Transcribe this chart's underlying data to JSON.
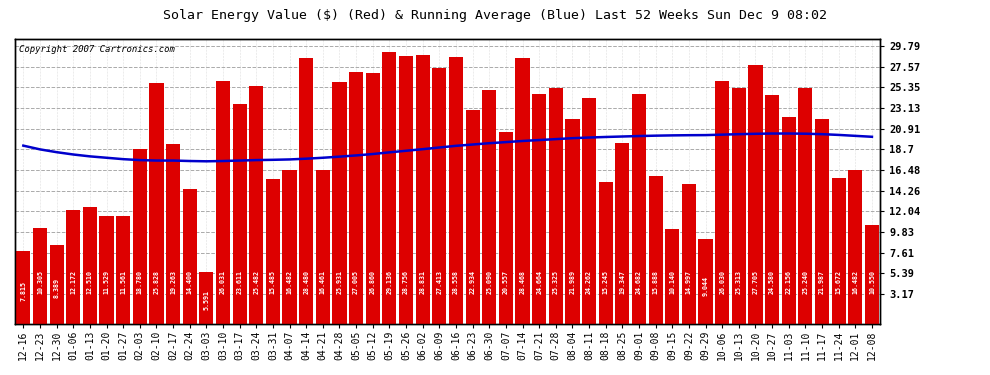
{
  "title": "Solar Energy Value ($) (Red) & Running Average (Blue) Last 52 Weeks Sun Dec 9 08:02",
  "copyright": "Copyright 2007 Cartronics.com",
  "bar_color": "#dd0000",
  "line_color": "#0000cc",
  "background_color": "#ffffff",
  "plot_bg_color": "#ffffff",
  "yticks_right": [
    3.17,
    5.39,
    7.61,
    9.83,
    12.04,
    14.26,
    16.48,
    18.7,
    20.91,
    23.13,
    25.35,
    27.57,
    29.79
  ],
  "categories": [
    "12-16",
    "12-23",
    "12-30",
    "01-06",
    "01-13",
    "01-20",
    "01-27",
    "02-03",
    "02-10",
    "02-17",
    "02-24",
    "03-03",
    "03-10",
    "03-17",
    "03-24",
    "03-31",
    "04-07",
    "04-14",
    "04-21",
    "04-28",
    "05-05",
    "05-12",
    "05-19",
    "05-26",
    "06-02",
    "06-09",
    "06-16",
    "06-23",
    "06-30",
    "07-07",
    "07-14",
    "07-21",
    "07-28",
    "08-04",
    "08-11",
    "08-18",
    "08-25",
    "09-01",
    "09-08",
    "09-15",
    "09-22",
    "09-29",
    "10-06",
    "10-13",
    "10-20",
    "10-27",
    "11-03",
    "11-10",
    "11-17",
    "11-24",
    "12-01",
    "12-08"
  ],
  "values": [
    7.815,
    10.305,
    8.389,
    12.172,
    12.51,
    11.529,
    11.561,
    18.78,
    25.828,
    19.263,
    14.4,
    5.591,
    26.031,
    23.611,
    25.482,
    15.485,
    16.482,
    28.48,
    16.461,
    25.931,
    27.005,
    26.86,
    29.136,
    28.756,
    28.831,
    27.413,
    28.558,
    22.934,
    25.09,
    20.557,
    28.468,
    24.664,
    25.325,
    21.989,
    24.262,
    15.245,
    19.347,
    24.682,
    15.888,
    10.14,
    14.997,
    9.044,
    26.03,
    25.313,
    27.705,
    24.58,
    22.156,
    25.24,
    21.987,
    15.672,
    16.482,
    10.55
  ],
  "running_avg": [
    19.1,
    18.7,
    18.4,
    18.15,
    17.95,
    17.8,
    17.65,
    17.55,
    17.5,
    17.5,
    17.45,
    17.42,
    17.45,
    17.5,
    17.55,
    17.58,
    17.62,
    17.7,
    17.8,
    17.92,
    18.05,
    18.2,
    18.38,
    18.55,
    18.72,
    18.9,
    19.08,
    19.22,
    19.36,
    19.48,
    19.6,
    19.7,
    19.8,
    19.9,
    19.97,
    20.03,
    20.08,
    20.13,
    20.17,
    20.2,
    20.22,
    20.23,
    20.28,
    20.33,
    20.37,
    20.4,
    20.4,
    20.38,
    20.33,
    20.25,
    20.15,
    20.05
  ],
  "ymax": 30.5,
  "ymin": 0.0,
  "title_fontsize": 9.5,
  "tick_label_fontsize": 7.0,
  "copyright_fontsize": 6.5,
  "value_label_fontsize": 4.8
}
